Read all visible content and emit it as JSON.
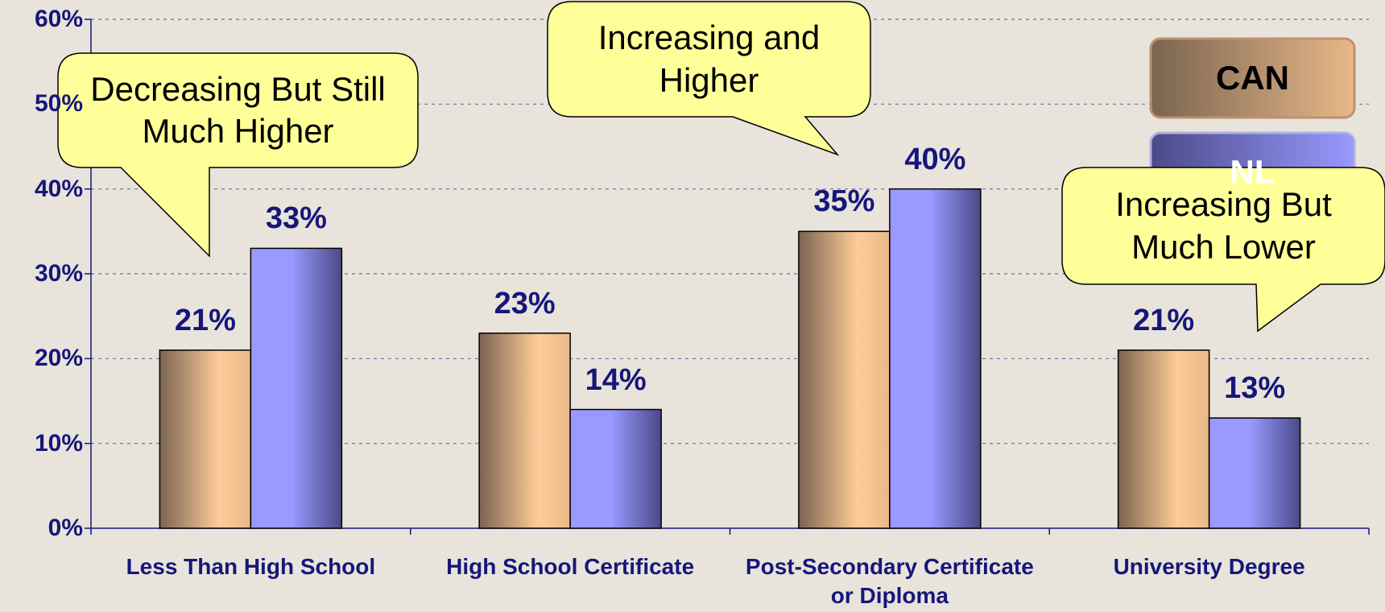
{
  "chart_data": {
    "type": "bar",
    "categories": [
      "Less Than High School",
      "High School Certificate",
      "Post-Secondary Certificate or Diploma",
      "University Degree"
    ],
    "series": [
      {
        "name": "CAN",
        "color": "#ffcc99",
        "values": [
          21,
          23,
          35,
          21
        ],
        "value_labels": [
          "21%",
          "23%",
          "35%",
          "21%"
        ]
      },
      {
        "name": "NL",
        "color": "#9999ff",
        "values": [
          33,
          14,
          40,
          13
        ],
        "value_labels": [
          "33%",
          "14%",
          "40%",
          "13%"
        ]
      }
    ],
    "ylim": [
      0,
      60
    ],
    "yticks": [
      {
        "value": 0,
        "label": "0%"
      },
      {
        "value": 10,
        "label": "10%"
      },
      {
        "value": 20,
        "label": "20%"
      },
      {
        "value": 30,
        "label": "30%"
      },
      {
        "value": 40,
        "label": "40%"
      },
      {
        "value": 50,
        "label": "50%"
      },
      {
        "value": 60,
        "label": "60%"
      }
    ],
    "grid": true,
    "legend_position": "upper right",
    "annotations": [
      "Decreasing But Still Much Higher",
      "Increasing and Higher",
      "Increasing But Much Lower"
    ]
  }
}
